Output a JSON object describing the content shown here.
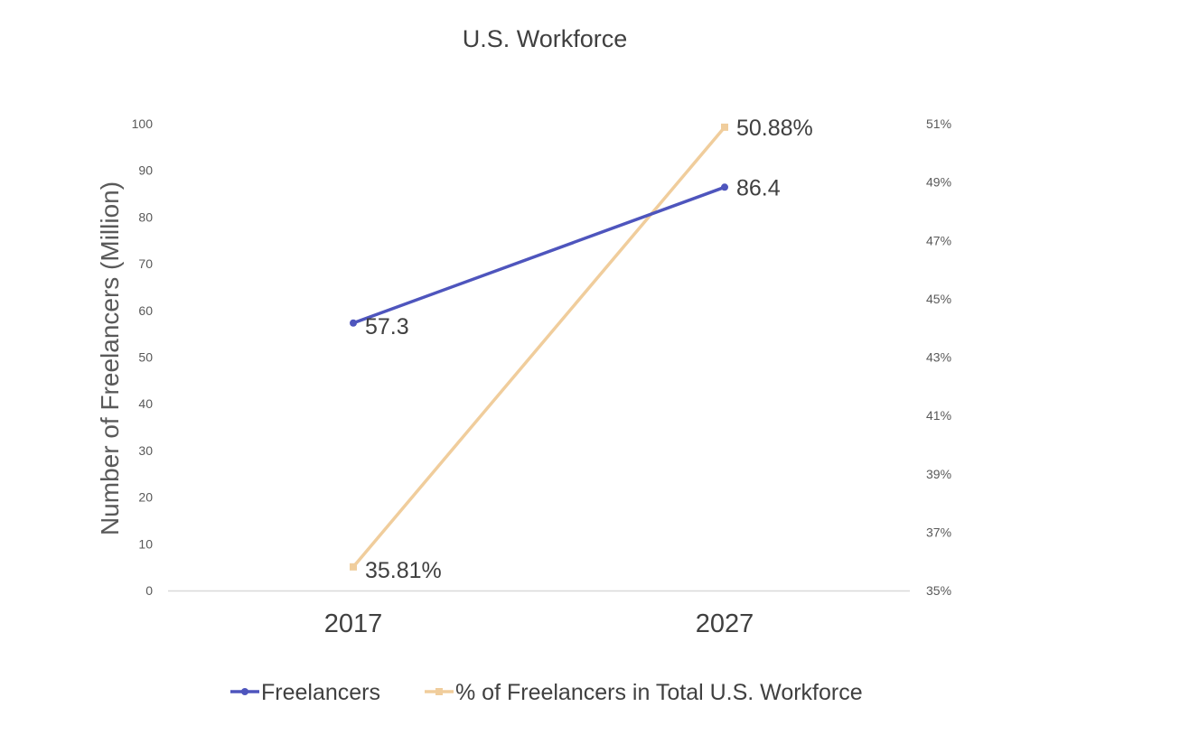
{
  "chart_data": {
    "type": "line",
    "title": "U.S. Workforce",
    "categories": [
      "2017",
      "2027"
    ],
    "ylabel": "Number of Freelancers (Million)",
    "y2label": "",
    "ylim": [
      0,
      100
    ],
    "y2lim": [
      35,
      51
    ],
    "yticks": [
      "0",
      "10",
      "20",
      "30",
      "40",
      "50",
      "60",
      "70",
      "80",
      "90",
      "100"
    ],
    "y2ticks": [
      "35%",
      "37%",
      "39%",
      "41%",
      "43%",
      "45%",
      "47%",
      "49%",
      "51%"
    ],
    "y2tick_values": [
      35,
      37,
      39,
      41,
      43,
      45,
      47,
      49,
      51
    ],
    "grid": false,
    "legend_position": "bottom",
    "series": [
      {
        "name": "Freelancers",
        "axis": "left",
        "values": [
          57.3,
          86.4
        ],
        "labels": [
          "57.3",
          "86.4"
        ],
        "color": "#4e55bd",
        "marker": "circle"
      },
      {
        "name": "% of Freelancers in Total U.S. Workforce",
        "axis": "right",
        "values": [
          35.81,
          50.88
        ],
        "labels": [
          "35.81%",
          "50.88%"
        ],
        "color": "#f0cd9c",
        "marker": "square"
      }
    ]
  }
}
